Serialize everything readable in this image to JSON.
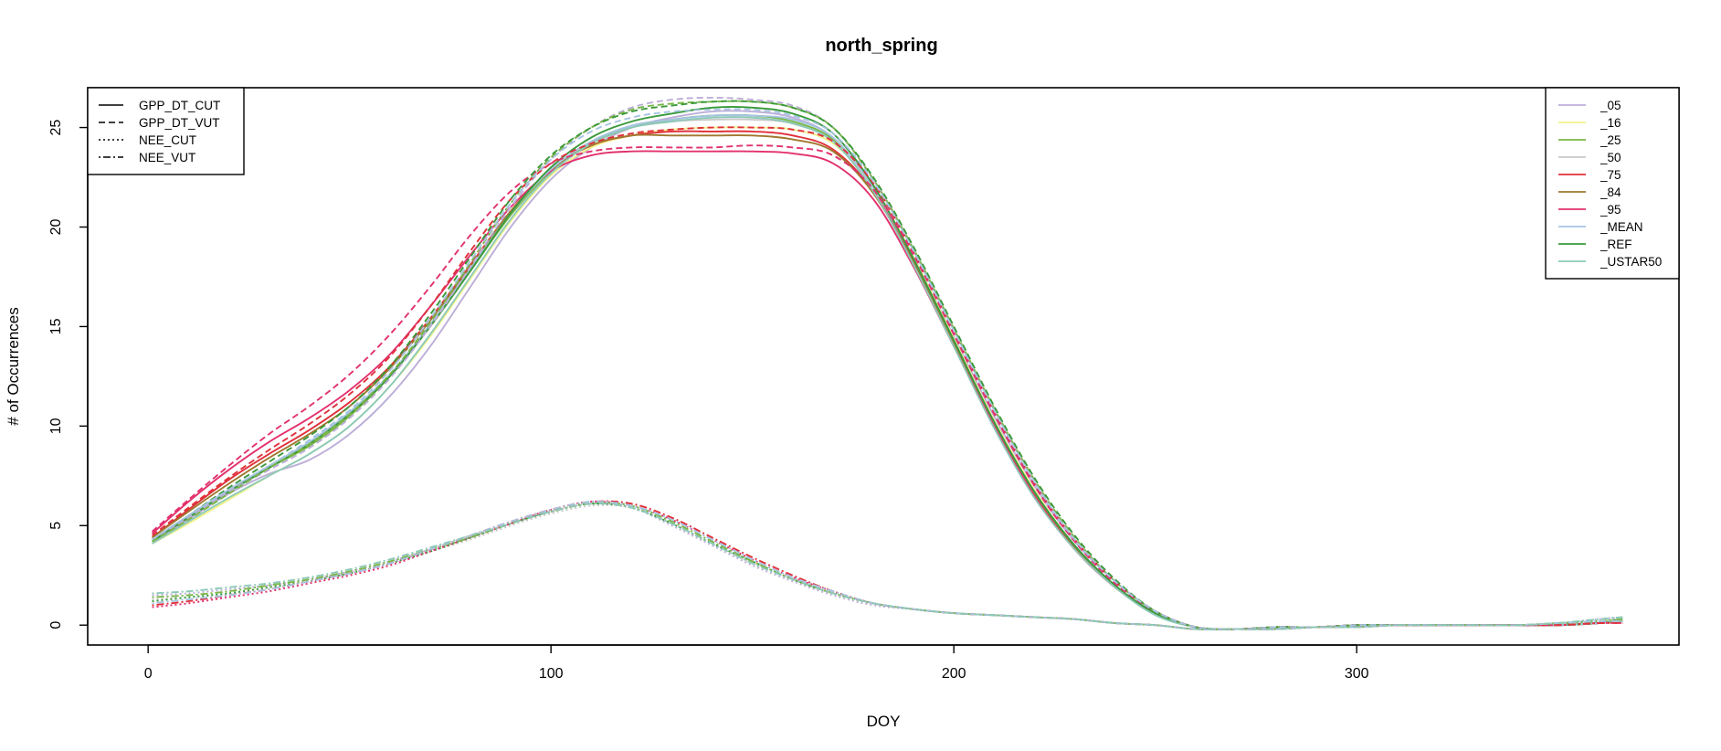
{
  "chart_data": {
    "type": "line",
    "title": "north_spring",
    "xlabel": "DOY",
    "ylabel": "# of Occurrences",
    "xlim": [
      -15,
      380
    ],
    "ylim": [
      -1,
      27
    ],
    "x_ticks": [
      "0",
      "100",
      "200",
      "300"
    ],
    "y_ticks": [
      "0",
      "5",
      "10",
      "15",
      "20",
      "25"
    ],
    "grid": false,
    "variables_legend": {
      "position": "top-left",
      "entries": [
        {
          "label": "GPP_DT_CUT",
          "dash": "solid"
        },
        {
          "label": "GPP_DT_VUT",
          "dash": "dashed"
        },
        {
          "label": "NEE_CUT",
          "dash": "dotted"
        },
        {
          "label": "NEE_VUT",
          "dash": "dotdash"
        }
      ]
    },
    "suffix_legend": {
      "position": "top-right",
      "entries": [
        {
          "label": "_05",
          "color": "#bcaed8"
        },
        {
          "label": "_16",
          "color": "#f2f28a"
        },
        {
          "label": "_25",
          "color": "#7ab648"
        },
        {
          "label": "_50",
          "color": "#c9c9c9"
        },
        {
          "label": "_75",
          "color": "#e0313b"
        },
        {
          "label": "_84",
          "color": "#a0772f"
        },
        {
          "label": "_95",
          "color": "#e2316e"
        },
        {
          "label": "_MEAN",
          "color": "#a6c4e2"
        },
        {
          "label": "_REF",
          "color": "#3a9a3a"
        },
        {
          "label": "_USTAR50",
          "color": "#8cc9b8"
        }
      ]
    },
    "x": [
      1,
      10,
      20,
      30,
      40,
      50,
      60,
      70,
      80,
      90,
      100,
      110,
      120,
      130,
      140,
      150,
      160,
      170,
      180,
      190,
      200,
      210,
      220,
      230,
      240,
      250,
      260,
      270,
      280,
      290,
      300,
      310,
      320,
      330,
      340,
      350,
      360,
      366
    ],
    "series": [
      {
        "name": "GPP_DT_CUT_05",
        "values": [
          4.2,
          5.3,
          6.6,
          7.6,
          8.3,
          9.6,
          11.5,
          14.0,
          17.0,
          20.0,
          22.4,
          24.0,
          25.0,
          25.5,
          25.8,
          25.8,
          25.5,
          24.5,
          22.0,
          18.5,
          14.5,
          10.5,
          7.0,
          4.2,
          2.2,
          0.7,
          -0.1,
          -0.2,
          -0.1,
          -0.1,
          0.0,
          0.0,
          0.0,
          0.0,
          0.0,
          0.0,
          0.1,
          0.2
        ]
      },
      {
        "name": "GPP_DT_CUT_16",
        "values": [
          4.1,
          5.1,
          6.3,
          7.5,
          8.6,
          10.0,
          12.0,
          14.5,
          17.4,
          20.3,
          22.6,
          24.0,
          24.6,
          24.9,
          25.0,
          25.0,
          24.9,
          24.2,
          22.0,
          18.5,
          14.4,
          10.3,
          6.8,
          4.0,
          2.0,
          0.6,
          -0.1,
          -0.2,
          -0.1,
          -0.1,
          0.0,
          0.0,
          0.0,
          0.0,
          0.0,
          0.0,
          0.1,
          0.2
        ]
      },
      {
        "name": "GPP_DT_CUT_25",
        "values": [
          4.3,
          5.4,
          6.7,
          7.9,
          9.0,
          10.5,
          12.5,
          15.0,
          17.8,
          20.6,
          22.8,
          24.2,
          25.0,
          25.4,
          25.6,
          25.6,
          25.3,
          24.4,
          22.0,
          18.4,
          14.3,
          10.2,
          6.7,
          4.0,
          2.0,
          0.6,
          -0.1,
          -0.2,
          -0.1,
          -0.1,
          0.0,
          0.0,
          0.0,
          0.0,
          0.0,
          0.0,
          0.1,
          0.2
        ]
      },
      {
        "name": "GPP_DT_CUT_50",
        "values": [
          4.3,
          5.5,
          6.8,
          8.0,
          9.2,
          10.7,
          12.6,
          15.1,
          17.9,
          20.7,
          22.9,
          24.3,
          25.0,
          25.3,
          25.4,
          25.4,
          25.2,
          24.3,
          22.0,
          18.4,
          14.3,
          10.2,
          6.7,
          4.0,
          2.0,
          0.6,
          -0.1,
          -0.2,
          -0.1,
          -0.1,
          0.0,
          0.0,
          0.0,
          0.0,
          0.0,
          0.0,
          0.1,
          0.2
        ]
      },
      {
        "name": "GPP_DT_CUT_75",
        "values": [
          4.4,
          5.8,
          7.3,
          8.6,
          9.8,
          11.2,
          13.0,
          15.4,
          18.1,
          20.8,
          22.9,
          24.1,
          24.6,
          24.8,
          24.8,
          24.8,
          24.6,
          23.9,
          21.8,
          18.3,
          14.2,
          10.1,
          6.6,
          3.9,
          1.9,
          0.6,
          -0.1,
          -0.2,
          -0.1,
          -0.1,
          0.0,
          0.0,
          0.0,
          0.0,
          0.0,
          0.0,
          0.1,
          0.2
        ]
      },
      {
        "name": "GPP_DT_CUT_84",
        "values": [
          4.4,
          5.7,
          7.1,
          8.4,
          9.6,
          11.0,
          12.9,
          15.3,
          18.0,
          20.8,
          22.9,
          24.1,
          24.6,
          24.6,
          24.6,
          24.6,
          24.4,
          23.8,
          21.7,
          18.2,
          14.2,
          10.1,
          6.6,
          3.9,
          1.9,
          0.6,
          -0.1,
          -0.2,
          -0.1,
          -0.1,
          0.0,
          0.0,
          0.0,
          0.0,
          0.0,
          0.0,
          0.1,
          0.2
        ]
      },
      {
        "name": "GPP_DT_CUT_95",
        "values": [
          4.6,
          6.2,
          7.8,
          9.2,
          10.4,
          11.8,
          13.6,
          16.0,
          18.6,
          21.0,
          22.8,
          23.6,
          23.8,
          23.8,
          23.8,
          23.8,
          23.7,
          23.2,
          21.4,
          18.0,
          14.0,
          10.0,
          6.5,
          3.8,
          1.9,
          0.6,
          -0.1,
          -0.2,
          -0.1,
          -0.1,
          0.0,
          0.0,
          0.0,
          0.0,
          0.0,
          0.0,
          0.1,
          0.2
        ]
      },
      {
        "name": "GPP_DT_CUT_MEAN",
        "values": [
          4.3,
          5.5,
          6.8,
          8.0,
          9.2,
          10.7,
          12.6,
          15.1,
          17.9,
          20.7,
          22.9,
          24.3,
          25.1,
          25.4,
          25.6,
          25.6,
          25.4,
          24.5,
          22.0,
          18.4,
          14.3,
          10.2,
          6.7,
          4.0,
          2.0,
          0.6,
          -0.1,
          -0.2,
          -0.1,
          -0.1,
          0.0,
          0.0,
          0.0,
          0.0,
          0.0,
          0.0,
          0.1,
          0.2
        ]
      },
      {
        "name": "GPP_DT_CUT_REF",
        "values": [
          4.2,
          5.4,
          6.7,
          7.9,
          9.1,
          10.6,
          12.5,
          15.0,
          17.8,
          20.7,
          23.0,
          24.5,
          25.3,
          25.7,
          26.0,
          26.0,
          25.7,
          24.7,
          22.1,
          18.4,
          14.3,
          10.2,
          6.7,
          4.0,
          2.0,
          0.6,
          -0.1,
          -0.2,
          -0.1,
          -0.1,
          0.0,
          0.0,
          0.0,
          0.0,
          0.0,
          0.0,
          0.1,
          0.2
        ]
      },
      {
        "name": "GPP_DT_CUT_USTAR50",
        "values": [
          4.1,
          5.2,
          6.4,
          7.5,
          8.6,
          10.0,
          12.0,
          14.6,
          17.5,
          20.4,
          22.7,
          24.2,
          25.0,
          25.3,
          25.5,
          25.5,
          25.2,
          24.3,
          21.8,
          18.1,
          14.0,
          9.9,
          6.4,
          3.8,
          1.9,
          0.5,
          -0.1,
          -0.2,
          -0.1,
          -0.1,
          0.0,
          0.0,
          0.0,
          0.0,
          0.0,
          0.0,
          0.1,
          0.2
        ]
      },
      {
        "name": "GPP_DT_VUT_05",
        "values": [
          4.3,
          5.4,
          6.7,
          7.8,
          8.9,
          10.4,
          12.4,
          15.0,
          18.0,
          21.0,
          23.4,
          25.0,
          26.0,
          26.4,
          26.5,
          26.4,
          26.1,
          25.0,
          22.4,
          18.8,
          14.8,
          10.8,
          7.2,
          4.3,
          2.2,
          0.7,
          -0.1,
          -0.2,
          -0.1,
          -0.1,
          0.0,
          0.0,
          0.0,
          0.0,
          0.0,
          0.0,
          0.1,
          0.2
        ]
      },
      {
        "name": "GPP_DT_VUT_25",
        "values": [
          4.2,
          5.3,
          6.6,
          7.9,
          9.1,
          10.6,
          12.6,
          15.2,
          18.2,
          21.2,
          23.5,
          25.0,
          25.9,
          26.2,
          26.3,
          26.3,
          26.0,
          25.0,
          22.4,
          18.9,
          14.9,
          10.9,
          7.3,
          4.4,
          2.2,
          0.7,
          -0.1,
          -0.2,
          -0.1,
          -0.1,
          0.0,
          0.0,
          0.0,
          0.0,
          0.0,
          0.0,
          0.1,
          0.2
        ]
      },
      {
        "name": "GPP_DT_VUT_75",
        "values": [
          4.5,
          5.9,
          7.4,
          8.8,
          10.1,
          11.6,
          13.5,
          16.0,
          18.8,
          21.4,
          23.2,
          24.2,
          24.7,
          24.9,
          25.0,
          25.0,
          24.9,
          24.3,
          22.2,
          18.7,
          14.7,
          10.7,
          7.1,
          4.3,
          2.2,
          0.7,
          -0.1,
          -0.2,
          -0.1,
          -0.1,
          0.0,
          0.0,
          0.0,
          0.0,
          0.0,
          0.0,
          0.1,
          0.2
        ]
      },
      {
        "name": "GPP_DT_VUT_95",
        "values": [
          4.7,
          6.3,
          8.0,
          9.6,
          11.0,
          12.6,
          14.6,
          17.0,
          19.6,
          21.8,
          23.2,
          23.8,
          24.0,
          24.0,
          24.0,
          24.1,
          24.0,
          23.6,
          21.9,
          18.6,
          14.6,
          10.6,
          7.0,
          4.2,
          2.1,
          0.7,
          -0.1,
          -0.2,
          -0.1,
          -0.1,
          0.0,
          0.0,
          0.0,
          0.0,
          0.0,
          0.0,
          0.1,
          0.2
        ]
      },
      {
        "name": "GPP_DT_VUT_REF",
        "values": [
          4.3,
          5.5,
          6.9,
          8.2,
          9.5,
          11.0,
          13.0,
          15.6,
          18.5,
          21.4,
          23.6,
          25.0,
          25.8,
          26.1,
          26.3,
          26.3,
          26.0,
          25.0,
          22.5,
          19.0,
          15.0,
          11.0,
          7.4,
          4.5,
          2.3,
          0.7,
          -0.1,
          -0.2,
          -0.1,
          -0.1,
          0.0,
          0.0,
          0.0,
          0.0,
          0.0,
          0.0,
          0.1,
          0.2
        ]
      },
      {
        "name": "GPP_DT_VUT_MEAN",
        "values": [
          4.3,
          5.5,
          6.8,
          8.0,
          9.3,
          10.8,
          12.8,
          15.4,
          18.3,
          21.2,
          23.4,
          24.8,
          25.5,
          25.8,
          25.9,
          25.9,
          25.6,
          24.7,
          22.3,
          18.8,
          14.8,
          10.8,
          7.2,
          4.3,
          2.2,
          0.7,
          -0.1,
          -0.2,
          -0.1,
          -0.1,
          0.0,
          0.0,
          0.0,
          0.0,
          0.0,
          0.0,
          0.1,
          0.2
        ]
      },
      {
        "name": "NEE_CUT_05",
        "values": [
          1.5,
          1.6,
          1.8,
          2.0,
          2.3,
          2.7,
          3.2,
          3.8,
          4.4,
          5.1,
          5.7,
          6.1,
          5.9,
          5.0,
          4.0,
          3.0,
          2.2,
          1.5,
          1.0,
          0.8,
          0.6,
          0.5,
          0.4,
          0.3,
          0.1,
          0.0,
          -0.2,
          -0.2,
          -0.2,
          -0.1,
          -0.1,
          0.0,
          0.0,
          0.0,
          0.0,
          0.1,
          0.3,
          0.4
        ]
      },
      {
        "name": "NEE_CUT_50",
        "values": [
          1.3,
          1.4,
          1.6,
          1.9,
          2.2,
          2.6,
          3.1,
          3.7,
          4.3,
          5.0,
          5.6,
          6.0,
          5.9,
          5.1,
          4.1,
          3.1,
          2.3,
          1.6,
          1.1,
          0.8,
          0.6,
          0.5,
          0.4,
          0.3,
          0.1,
          0.0,
          -0.2,
          -0.2,
          -0.2,
          -0.1,
          -0.1,
          0.0,
          0.0,
          0.0,
          0.0,
          0.1,
          0.2,
          0.3
        ]
      },
      {
        "name": "NEE_CUT_REF",
        "values": [
          1.2,
          1.4,
          1.6,
          1.9,
          2.2,
          2.6,
          3.1,
          3.7,
          4.4,
          5.1,
          5.7,
          6.1,
          5.9,
          5.1,
          4.1,
          3.2,
          2.3,
          1.6,
          1.1,
          0.8,
          0.6,
          0.5,
          0.4,
          0.3,
          0.1,
          0.0,
          -0.2,
          -0.2,
          -0.2,
          -0.1,
          -0.1,
          0.0,
          0.0,
          0.0,
          0.0,
          0.1,
          0.2,
          0.3
        ]
      },
      {
        "name": "NEE_CUT_95",
        "values": [
          0.9,
          1.1,
          1.4,
          1.7,
          2.1,
          2.5,
          3.0,
          3.7,
          4.4,
          5.1,
          5.8,
          6.2,
          6.0,
          5.3,
          4.3,
          3.3,
          2.4,
          1.7,
          1.1,
          0.8,
          0.6,
          0.5,
          0.4,
          0.3,
          0.1,
          0.0,
          -0.2,
          -0.2,
          -0.2,
          -0.1,
          -0.1,
          0.0,
          0.0,
          0.0,
          0.0,
          0.0,
          0.1,
          0.1
        ]
      },
      {
        "name": "NEE_VUT_25",
        "values": [
          1.4,
          1.5,
          1.7,
          2.0,
          2.3,
          2.7,
          3.2,
          3.8,
          4.4,
          5.1,
          5.7,
          6.1,
          6.0,
          5.2,
          4.2,
          3.2,
          2.3,
          1.6,
          1.1,
          0.8,
          0.6,
          0.5,
          0.4,
          0.3,
          0.1,
          0.0,
          -0.2,
          -0.2,
          -0.2,
          -0.1,
          -0.1,
          0.0,
          0.0,
          0.0,
          0.0,
          0.1,
          0.2,
          0.3
        ]
      },
      {
        "name": "NEE_VUT_75",
        "values": [
          1.0,
          1.2,
          1.5,
          1.8,
          2.2,
          2.6,
          3.1,
          3.8,
          4.5,
          5.2,
          5.8,
          6.2,
          6.1,
          5.4,
          4.4,
          3.4,
          2.5,
          1.7,
          1.1,
          0.8,
          0.6,
          0.5,
          0.4,
          0.3,
          0.1,
          0.0,
          -0.2,
          -0.2,
          -0.2,
          -0.1,
          -0.1,
          0.0,
          0.0,
          0.0,
          0.0,
          0.0,
          0.1,
          0.1
        ]
      },
      {
        "name": "NEE_VUT_MEAN",
        "values": [
          1.1,
          1.3,
          1.5,
          1.8,
          2.2,
          2.6,
          3.1,
          3.8,
          4.5,
          5.2,
          5.8,
          6.2,
          6.0,
          5.3,
          4.3,
          3.3,
          2.4,
          1.7,
          1.1,
          0.8,
          0.6,
          0.5,
          0.4,
          0.3,
          0.1,
          0.0,
          -0.2,
          -0.2,
          -0.2,
          -0.1,
          -0.1,
          0.0,
          0.0,
          0.0,
          0.0,
          0.1,
          0.2,
          0.2
        ]
      },
      {
        "name": "NEE_VUT_USTAR50",
        "values": [
          1.6,
          1.7,
          1.9,
          2.1,
          2.4,
          2.8,
          3.3,
          3.9,
          4.5,
          5.1,
          5.7,
          6.1,
          5.9,
          5.1,
          4.1,
          3.1,
          2.3,
          1.6,
          1.1,
          0.8,
          0.6,
          0.5,
          0.4,
          0.3,
          0.1,
          0.0,
          -0.2,
          -0.2,
          -0.2,
          -0.1,
          -0.1,
          0.0,
          0.0,
          0.0,
          0.0,
          0.1,
          0.3,
          0.4
        ]
      }
    ]
  }
}
